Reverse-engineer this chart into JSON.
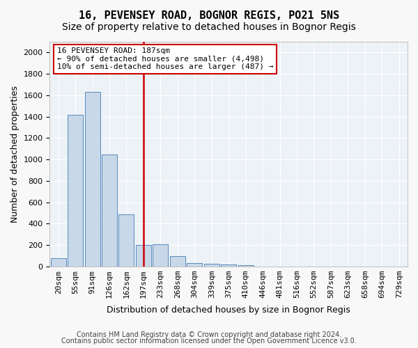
{
  "title": "16, PEVENSEY ROAD, BOGNOR REGIS, PO21 5NS",
  "subtitle": "Size of property relative to detached houses in Bognor Regis",
  "xlabel": "Distribution of detached houses by size in Bognor Regis",
  "ylabel": "Number of detached properties",
  "footnote1": "Contains HM Land Registry data © Crown copyright and database right 2024.",
  "footnote2": "Contains public sector information licensed under the Open Government Licence v3.0.",
  "bar_labels": [
    "20sqm",
    "55sqm",
    "91sqm",
    "126sqm",
    "162sqm",
    "197sqm",
    "233sqm",
    "268sqm",
    "304sqm",
    "339sqm",
    "375sqm",
    "410sqm",
    "446sqm",
    "481sqm",
    "516sqm",
    "552sqm",
    "587sqm",
    "623sqm",
    "658sqm",
    "694sqm",
    "729sqm"
  ],
  "bar_values": [
    75,
    1420,
    1630,
    1050,
    490,
    200,
    205,
    100,
    35,
    25,
    20,
    10,
    0,
    0,
    0,
    0,
    0,
    0,
    0,
    0,
    0
  ],
  "bar_color": "#c8d8e8",
  "bar_edge_color": "#5588bb",
  "red_line_x": 5,
  "annotation_line1": "16 PEVENSEY ROAD: 187sqm",
  "annotation_line2": "← 90% of detached houses are smaller (4,498)",
  "annotation_line3": "10% of semi-detached houses are larger (487) →",
  "ylim": [
    0,
    2100
  ],
  "yticks": [
    0,
    200,
    400,
    600,
    800,
    1000,
    1200,
    1400,
    1600,
    1800,
    2000
  ],
  "red_line_color": "#cc0000",
  "annotation_box_color": "#cc0000",
  "background_color": "#edf2f7",
  "grid_color": "#ffffff",
  "title_fontsize": 11,
  "subtitle_fontsize": 10,
  "axis_label_fontsize": 9,
  "tick_fontsize": 8,
  "annotation_fontsize": 8,
  "footnote_fontsize": 7
}
